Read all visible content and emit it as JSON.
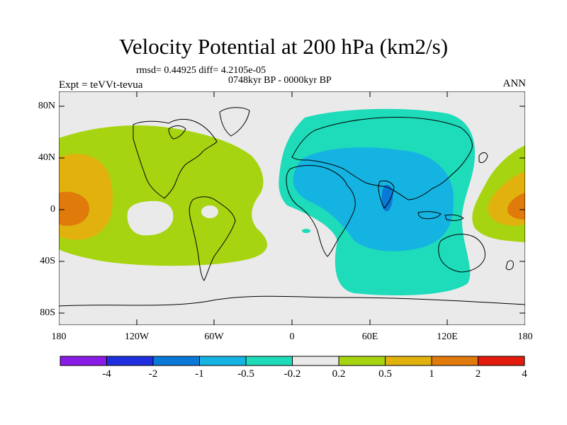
{
  "title": "Velocity Potential at 200 hPa (km2/s)",
  "stats": "rmsd= 0.44925 diff= 4.2105e-05",
  "period": "0748kyr BP - 0000kyr BP",
  "expt": "Expt = teVVt-tevua",
  "season": "ANN",
  "lat_labels": [
    "80N",
    "40N",
    "0",
    "40S",
    "80S"
  ],
  "lon_labels": [
    "180",
    "120W",
    "60W",
    "0",
    "60E",
    "120E",
    "180"
  ],
  "colorbar": {
    "labels": [
      "-4",
      "-2",
      "-1",
      "-0.5",
      "-0.2",
      "0.2",
      "0.5",
      "1",
      "2",
      "4"
    ],
    "colors": [
      "#8a1be6",
      "#1f2fdf",
      "#0a78d7",
      "#15b3e2",
      "#1edbba",
      "#eaeaea",
      "#a7d411",
      "#e1b20d",
      "#e07a0b",
      "#e21b0d"
    ]
  },
  "map_fills": {
    "background": "#eaeaea",
    "positive_weak": "#a7d411",
    "positive_mid": "#e1b20d",
    "positive_strong": "#e07a0b",
    "negative_weak": "#1edbba",
    "negative_mid": "#15b3e2",
    "negative_strong": "#0a78d7"
  }
}
